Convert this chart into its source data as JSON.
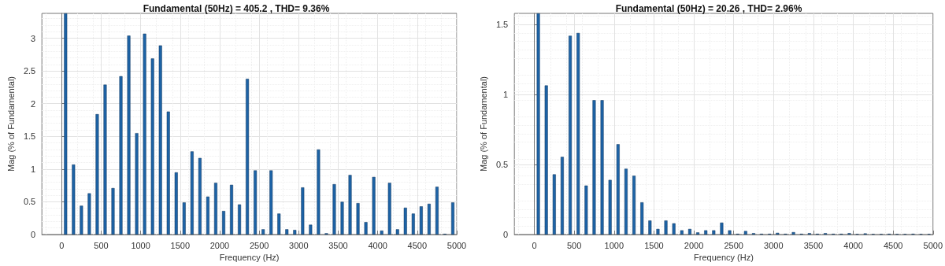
{
  "chart_data": [
    {
      "type": "bar",
      "title": "Fundamental (50Hz) = 405.2 , THD= 9.36%",
      "xlabel": "Frequency (Hz)",
      "ylabel": "Mag (% of Fundamental)",
      "color": "#1d63a6",
      "grid": true,
      "x": [
        50,
        150,
        250,
        350,
        450,
        550,
        650,
        750,
        850,
        950,
        1050,
        1150,
        1250,
        1350,
        1450,
        1550,
        1650,
        1750,
        1850,
        1950,
        2050,
        2150,
        2250,
        2350,
        2450,
        2550,
        2650,
        2750,
        2850,
        2950,
        3050,
        3150,
        3250,
        3350,
        3450,
        3550,
        3650,
        3750,
        3850,
        3950,
        4050,
        4150,
        4250,
        4350,
        4450,
        4550,
        4650,
        4750,
        4850,
        4950
      ],
      "values": [
        3.38,
        1.07,
        0.44,
        0.63,
        1.84,
        2.29,
        0.71,
        2.42,
        3.04,
        1.55,
        3.07,
        2.69,
        2.89,
        1.88,
        0.95,
        0.49,
        1.27,
        1.17,
        0.58,
        0.79,
        0.36,
        0.76,
        0.46,
        2.38,
        0.98,
        0.08,
        0.98,
        0.32,
        0.08,
        0.07,
        0.72,
        0.15,
        1.3,
        0.02,
        0.77,
        0.5,
        0.91,
        0.48,
        0.19,
        0.88,
        0.06,
        0.79,
        0.08,
        0.41,
        0.32,
        0.43,
        0.47,
        0.73,
        0.01,
        0.49
      ],
      "xlim": [
        -250,
        5000
      ],
      "xticks": [
        0,
        500,
        1000,
        1500,
        2000,
        2500,
        3000,
        3500,
        4000,
        4500,
        5000
      ],
      "ylim": [
        0,
        3.38
      ],
      "yticks": [
        0,
        0.5,
        1,
        1.5,
        2,
        2.5,
        3
      ]
    },
    {
      "type": "bar",
      "title": "Fundamental (50Hz) = 20.26 , THD= 2.96%",
      "xlabel": "Frequency (Hz)",
      "ylabel": "Mag (% of Fundamental)",
      "color": "#1d63a6",
      "grid": true,
      "x": [
        50,
        150,
        250,
        350,
        450,
        550,
        650,
        750,
        850,
        950,
        1050,
        1150,
        1250,
        1350,
        1450,
        1550,
        1650,
        1750,
        1850,
        1950,
        2050,
        2150,
        2250,
        2350,
        2450,
        2550,
        2650,
        2750,
        2850,
        2950,
        3050,
        3150,
        3250,
        3350,
        3450,
        3550,
        3650,
        3750,
        3850,
        3950,
        4050,
        4150,
        4250,
        4350,
        4450,
        4550,
        4650,
        4750,
        4850,
        4950
      ],
      "values": [
        1.58,
        1.065,
        0.43,
        0.555,
        1.42,
        1.44,
        0.35,
        0.96,
        0.96,
        0.39,
        0.645,
        0.47,
        0.42,
        0.23,
        0.1,
        0.04,
        0.1,
        0.08,
        0.03,
        0.04,
        0.015,
        0.03,
        0.03,
        0.085,
        0.03,
        0.005,
        0.025,
        0.01,
        0.005,
        0.005,
        0.012,
        0.005,
        0.017,
        0.005,
        0.01,
        0.005,
        0.01,
        0.005,
        0.005,
        0.01,
        0.003,
        0.008,
        0.003,
        0.003,
        0.005,
        0.003,
        0.003,
        0.005,
        0.003,
        0.003
      ],
      "xlim": [
        -250,
        5000
      ],
      "xticks": [
        0,
        500,
        1000,
        1500,
        2000,
        2500,
        3000,
        3500,
        4000,
        4500,
        5000
      ],
      "ylim": [
        0,
        1.58
      ],
      "yticks": [
        0,
        0.5,
        1,
        1.5
      ]
    }
  ]
}
